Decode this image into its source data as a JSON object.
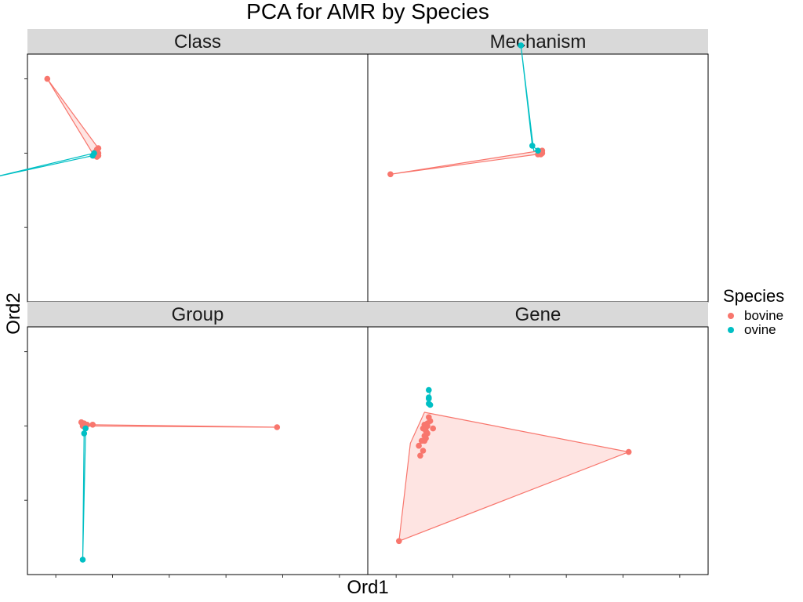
{
  "chart_data": {
    "type": "scatter",
    "title": "PCA for AMR by Species",
    "xlabel": "Ord1",
    "ylabel": "Ord2",
    "xlim": [
      -2,
      10
    ],
    "ylim": [
      -6,
      4
    ],
    "xticks": [
      -1,
      1,
      3,
      5,
      7,
      9
    ],
    "yticks": [
      -3,
      0,
      3
    ],
    "tick_labels_shown": false,
    "grid": false,
    "hull_fill_series": [
      "bovine"
    ],
    "legend": {
      "title": "Species",
      "position": "right"
    },
    "series": [
      {
        "name": "bovine",
        "color": "#F8766D"
      },
      {
        "name": "ovine",
        "color": "#00BFC4"
      }
    ],
    "facets": [
      {
        "label": "Class",
        "points": [
          {
            "series": "bovine",
            "x": [
              0.35,
              0.4,
              0.4,
              0.45,
              0.45,
              0.5,
              0.5,
              0.45,
              0.5,
              0.45,
              -1.3
            ],
            "y": [
              -0.1,
              -0.05,
              0.05,
              -0.15,
              0.1,
              0.0,
              0.2,
              0.05,
              -0.1,
              0.15,
              3.0
            ]
          },
          {
            "series": "ovine",
            "x": [
              -3.3,
              0.3,
              0.35
            ],
            "y": [
              -1.0,
              -0.1,
              0.0
            ]
          }
        ],
        "hulls": [
          {
            "series": "bovine",
            "x": [
              -1.3,
              0.35,
              0.5,
              0.5
            ],
            "y": [
              3.0,
              -0.1,
              -0.1,
              0.2
            ]
          },
          {
            "series": "ovine",
            "x": [
              -3.3,
              0.3,
              0.35
            ],
            "y": [
              -1.0,
              -0.1,
              0.0
            ]
          }
        ]
      },
      {
        "label": "Mechanism",
        "points": [
          {
            "series": "bovine",
            "x": [
              -1.2,
              4.0,
              4.05,
              4.1,
              4.15,
              4.1,
              4.05,
              4.15
            ],
            "y": [
              -0.85,
              -0.05,
              0.0,
              0.05,
              0.0,
              -0.05,
              0.05,
              0.1
            ],
            "note": "x values relative to facet origin"
          },
          {
            "series": "ovine",
            "x": [
              3.4,
              3.8,
              4.0
            ],
            "y": [
              4.35,
              0.3,
              0.1
            ]
          }
        ],
        "hulls": [
          {
            "series": "bovine",
            "x": [
              -1.2,
              3.95,
              4.15,
              4.1
            ],
            "y": [
              -0.85,
              -0.05,
              0.0,
              0.1
            ]
          },
          {
            "series": "ovine",
            "x": [
              3.4,
              3.8,
              4.0,
              3.85
            ],
            "y": [
              4.35,
              0.3,
              0.1,
              0.1
            ]
          }
        ]
      },
      {
        "label": "Group",
        "points": [
          {
            "series": "bovine",
            "x": [
              -0.1,
              0.0,
              0.05,
              -0.05,
              0.1,
              0.3,
              0.05,
              6.8
            ],
            "y": [
              0.15,
              0.1,
              0.05,
              0.0,
              0.05,
              0.05,
              -0.05,
              -0.05
            ]
          },
          {
            "series": "ovine",
            "x": [
              0.0,
              0.05,
              -0.05
            ],
            "y": [
              -0.3,
              -0.1,
              -5.4
            ]
          }
        ],
        "hulls": [
          {
            "series": "bovine",
            "x": [
              -0.1,
              0.05,
              0.3,
              6.8,
              0.05
            ],
            "y": [
              0.15,
              -0.05,
              0.05,
              -0.05,
              0.0
            ]
          },
          {
            "series": "ovine",
            "x": [
              -0.05,
              0.05,
              0.0
            ],
            "y": [
              -5.4,
              -0.3,
              -0.1
            ]
          }
        ]
      },
      {
        "label": "Gene",
        "points": [
          {
            "series": "bovine",
            "x": [
              0.15,
              0.2,
              0.1,
              0.0,
              -0.05,
              0.05,
              0.1,
              0.0,
              0.05,
              0.1,
              -0.1,
              -0.15,
              -0.05,
              0.3,
              7.2,
              -0.9,
              -0.2,
              0.0
            ],
            "y": [
              0.35,
              0.2,
              0.1,
              0.05,
              -0.1,
              -0.2,
              -0.3,
              -0.4,
              -0.5,
              0.0,
              -0.6,
              -1.2,
              -1.0,
              -0.1,
              -1.05,
              -4.65,
              -0.8,
              -0.6
            ]
          },
          {
            "series": "ovine",
            "x": [
              0.15,
              0.15,
              0.2,
              0.15,
              0.15
            ],
            "y": [
              1.15,
              0.9,
              0.85,
              1.45,
              1.1
            ]
          }
        ],
        "hulls": [
          {
            "series": "bovine",
            "x": [
              0.0,
              7.2,
              -0.9,
              -0.5
            ],
            "y": [
              0.55,
              -1.05,
              -4.65,
              -0.7
            ]
          },
          {
            "series": "ovine",
            "x": [
              0.15,
              0.2,
              0.15
            ],
            "y": [
              0.85,
              1.45,
              0.9
            ]
          }
        ]
      }
    ]
  }
}
